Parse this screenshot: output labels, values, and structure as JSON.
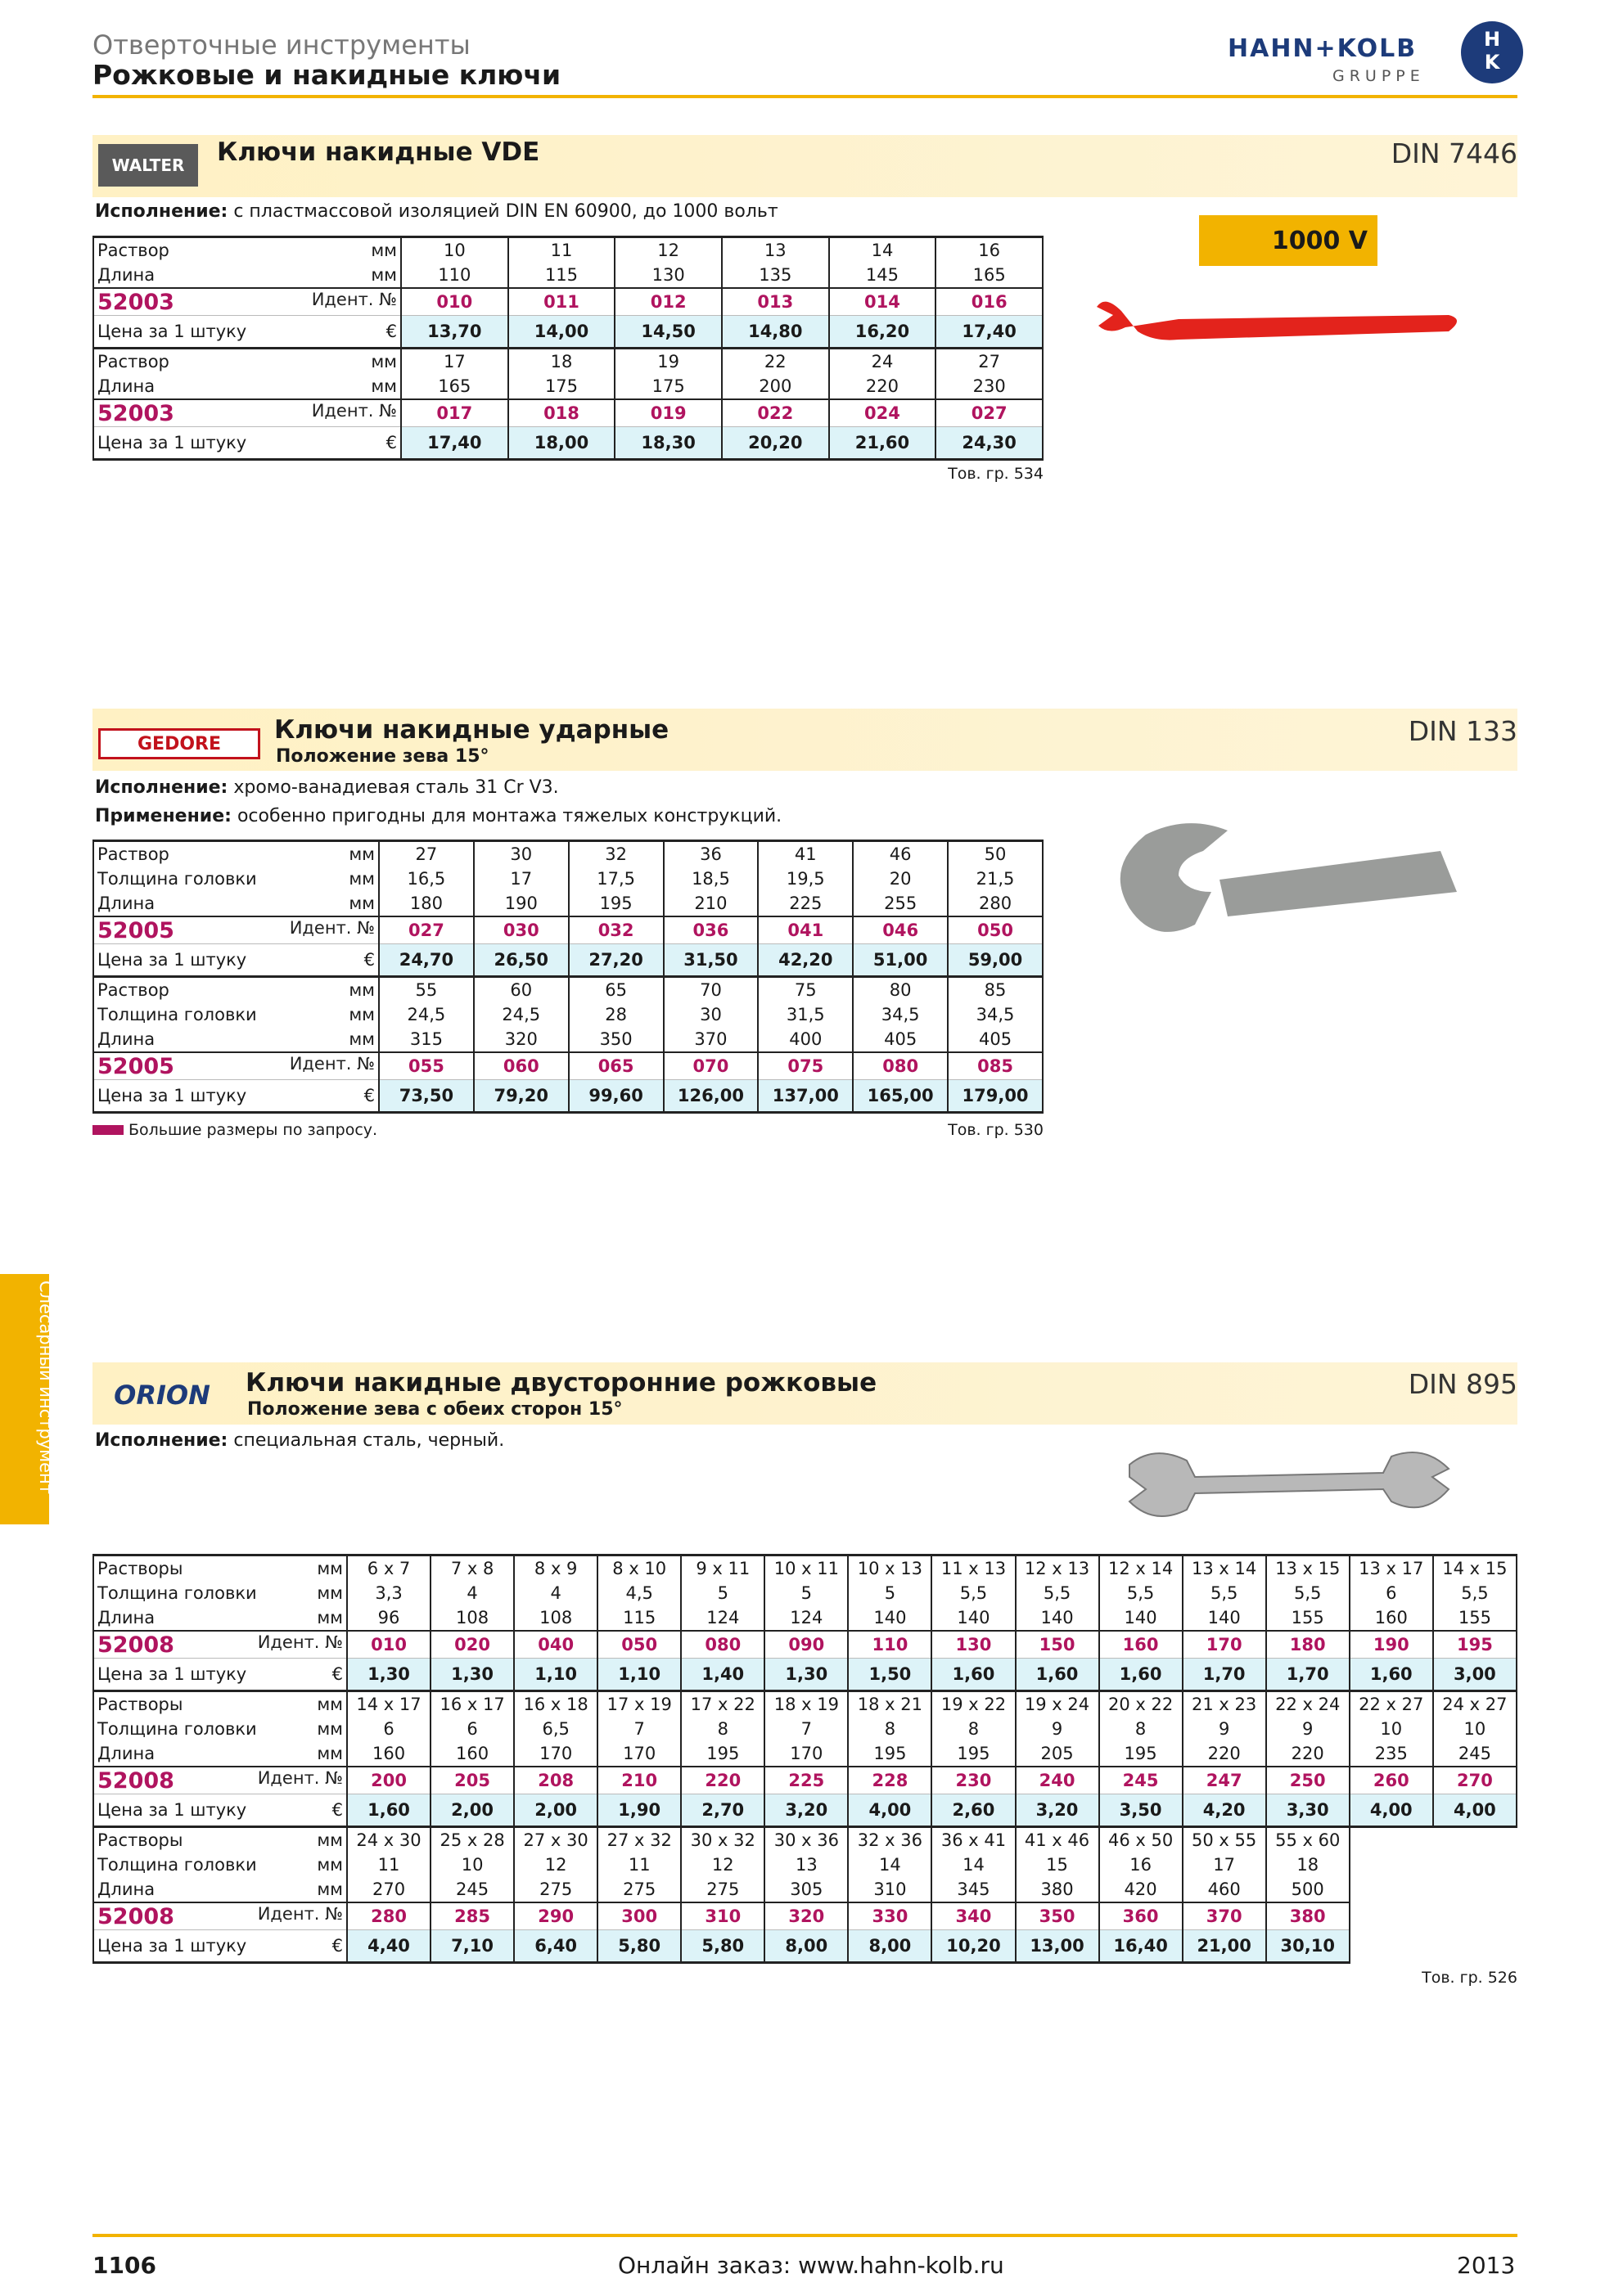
{
  "header": {
    "category": "Отверточные инструменты",
    "title": "Рожковые и накидные ключи",
    "logo": {
      "name": "HAHN+KOLB",
      "sub": "GRUPPE",
      "mark": [
        "H",
        "K"
      ]
    }
  },
  "side_tab": "Слесарный инструмент",
  "sections": [
    {
      "brand": "WALTER",
      "title": "Ключи накидные VDE",
      "din": "DIN 7446",
      "badge": "1000 V",
      "notes": [
        {
          "label": "Исполнение:",
          "text": "с пластмассовой изоляцией DIN EN 60900, до 1000 вольт"
        }
      ],
      "tables": [
        {
          "rows": [
            {
              "label": "Раствор",
              "unit": "мм",
              "cells": [
                "10",
                "11",
                "12",
                "13",
                "14",
                "16"
              ]
            },
            {
              "label": "Длина",
              "unit": "мм",
              "cells": [
                "110",
                "115",
                "130",
                "135",
                "145",
                "165"
              ]
            },
            {
              "label": "52003",
              "unit": "Идент. №",
              "cells": [
                "010",
                "011",
                "012",
                "013",
                "014",
                "016"
              ]
            },
            {
              "label": "Цена за 1 штуку",
              "unit": "€",
              "cells": [
                "13,70",
                "14,00",
                "14,50",
                "14,80",
                "16,20",
                "17,40"
              ]
            }
          ]
        },
        {
          "rows": [
            {
              "label": "Раствор",
              "unit": "мм",
              "cells": [
                "17",
                "18",
                "19",
                "22",
                "24",
                "27"
              ]
            },
            {
              "label": "Длина",
              "unit": "мм",
              "cells": [
                "165",
                "175",
                "175",
                "200",
                "220",
                "230"
              ]
            },
            {
              "label": "52003",
              "unit": "Идент. №",
              "cells": [
                "017",
                "018",
                "019",
                "022",
                "024",
                "027"
              ]
            },
            {
              "label": "Цена за 1 штуку",
              "unit": "€",
              "cells": [
                "17,40",
                "18,00",
                "18,30",
                "20,20",
                "21,60",
                "24,30"
              ]
            }
          ]
        }
      ],
      "group": "Тов. гр. 534"
    },
    {
      "brand": "GEDORE",
      "title": "Ключи накидные ударные",
      "subtitle": "Положение зева 15°",
      "din": "DIN 133",
      "notes": [
        {
          "label": "Исполнение:",
          "text": "хромо-ванадиевая сталь 31 Cr V3."
        },
        {
          "label": "Применение:",
          "text": "особенно пригодны для монтажа тяжелых конструкций."
        }
      ],
      "tables": [
        {
          "rows": [
            {
              "label": "Раствор",
              "unit": "мм",
              "cells": [
                "27",
                "30",
                "32",
                "36",
                "41",
                "46",
                "50"
              ]
            },
            {
              "label": "Толщина головки",
              "unit": "мм",
              "cells": [
                "16,5",
                "17",
                "17,5",
                "18,5",
                "19,5",
                "20",
                "21,5"
              ]
            },
            {
              "label": "Длина",
              "unit": "мм",
              "cells": [
                "180",
                "190",
                "195",
                "210",
                "225",
                "255",
                "280"
              ]
            },
            {
              "label": "52005",
              "unit": "Идент. №",
              "cells": [
                "027",
                "030",
                "032",
                "036",
                "041",
                "046",
                "050"
              ]
            },
            {
              "label": "Цена за 1 штуку",
              "unit": "€",
              "cells": [
                "24,70",
                "26,50",
                "27,20",
                "31,50",
                "42,20",
                "51,00",
                "59,00"
              ]
            }
          ]
        },
        {
          "rows": [
            {
              "label": "Раствор",
              "unit": "мм",
              "cells": [
                "55",
                "60",
                "65",
                "70",
                "75",
                "80",
                "85"
              ]
            },
            {
              "label": "Толщина головки",
              "unit": "мм",
              "cells": [
                "24,5",
                "24,5",
                "28",
                "30",
                "31,5",
                "34,5",
                "34,5"
              ]
            },
            {
              "label": "Длина",
              "unit": "мм",
              "cells": [
                "315",
                "320",
                "350",
                "370",
                "400",
                "405",
                "405"
              ]
            },
            {
              "label": "52005",
              "unit": "Идент. №",
              "cells": [
                "055",
                "060",
                "065",
                "070",
                "075",
                "080",
                "085"
              ]
            },
            {
              "label": "Цена за 1 штуку",
              "unit": "€",
              "cells": [
                "73,50",
                "79,20",
                "99,60",
                "126,00",
                "137,00",
                "165,00",
                "179,00"
              ]
            }
          ]
        }
      ],
      "footnote": "Большие размеры по запросу.",
      "group": "Тов. гр. 530"
    },
    {
      "brand": "ORION",
      "title": "Ключи накидные двусторонние рожковые",
      "subtitle": "Положение зева с обеих сторон 15°",
      "din": "DIN 895",
      "notes": [
        {
          "label": "Исполнение:",
          "text": "специальная сталь, черный."
        }
      ],
      "tables": [
        {
          "rows": [
            {
              "label": "Растворы",
              "unit": "мм",
              "cells": [
                "6 x 7",
                "7 x 8",
                "8 x 9",
                "8 x 10",
                "9 x 11",
                "10 x 11",
                "10 x 13",
                "11 x 13",
                "12 x 13",
                "12 x 14",
                "13 x 14",
                "13 x 15",
                "13 x 17",
                "14 x 15"
              ]
            },
            {
              "label": "Толщина головки",
              "unit": "мм",
              "cells": [
                "3,3",
                "4",
                "4",
                "4,5",
                "5",
                "5",
                "5",
                "5,5",
                "5,5",
                "5,5",
                "5,5",
                "5,5",
                "6",
                "5,5"
              ]
            },
            {
              "label": "Длина",
              "unit": "мм",
              "cells": [
                "96",
                "108",
                "108",
                "115",
                "124",
                "124",
                "140",
                "140",
                "140",
                "140",
                "140",
                "155",
                "160",
                "155"
              ]
            },
            {
              "label": "52008",
              "unit": "Идент. №",
              "cells": [
                "010",
                "020",
                "040",
                "050",
                "080",
                "090",
                "110",
                "130",
                "150",
                "160",
                "170",
                "180",
                "190",
                "195"
              ]
            },
            {
              "label": "Цена за 1 штуку",
              "unit": "€",
              "cells": [
                "1,30",
                "1,30",
                "1,10",
                "1,10",
                "1,40",
                "1,30",
                "1,50",
                "1,60",
                "1,60",
                "1,60",
                "1,70",
                "1,70",
                "1,60",
                "3,00"
              ]
            }
          ]
        },
        {
          "rows": [
            {
              "label": "Растворы",
              "unit": "мм",
              "cells": [
                "14 x 17",
                "16 x 17",
                "16 x 18",
                "17 x 19",
                "17 x 22",
                "18 x 19",
                "18 x 21",
                "19 x 22",
                "19 x 24",
                "20 x 22",
                "21 x 23",
                "22 x 24",
                "22 x 27",
                "24 x 27"
              ]
            },
            {
              "label": "Толщина головки",
              "unit": "мм",
              "cells": [
                "6",
                "6",
                "6,5",
                "7",
                "8",
                "7",
                "8",
                "8",
                "9",
                "8",
                "9",
                "9",
                "10",
                "10"
              ]
            },
            {
              "label": "Длина",
              "unit": "мм",
              "cells": [
                "160",
                "160",
                "170",
                "170",
                "195",
                "170",
                "195",
                "195",
                "205",
                "195",
                "220",
                "220",
                "235",
                "245"
              ]
            },
            {
              "label": "52008",
              "unit": "Идент. №",
              "cells": [
                "200",
                "205",
                "208",
                "210",
                "220",
                "225",
                "228",
                "230",
                "240",
                "245",
                "247",
                "250",
                "260",
                "270"
              ]
            },
            {
              "label": "Цена за 1 штуку",
              "unit": "€",
              "cells": [
                "1,60",
                "2,00",
                "2,00",
                "1,90",
                "2,70",
                "3,20",
                "4,00",
                "2,60",
                "3,20",
                "3,50",
                "4,20",
                "3,30",
                "4,00",
                "4,00"
              ]
            }
          ]
        },
        {
          "rows": [
            {
              "label": "Растворы",
              "unit": "мм",
              "cells": [
                "24 x 30",
                "25 x 28",
                "27 x 30",
                "27 x 32",
                "30 x 32",
                "30 x 36",
                "32 x 36",
                "36 x 41",
                "41 x 46",
                "46 x 50",
                "50 x 55",
                "55 x 60"
              ]
            },
            {
              "label": "Толщина головки",
              "unit": "мм",
              "cells": [
                "11",
                "10",
                "12",
                "11",
                "12",
                "13",
                "14",
                "14",
                "15",
                "16",
                "17",
                "18"
              ]
            },
            {
              "label": "Длина",
              "unit": "мм",
              "cells": [
                "270",
                "245",
                "275",
                "275",
                "275",
                "305",
                "310",
                "345",
                "380",
                "420",
                "460",
                "500"
              ]
            },
            {
              "label": "52008",
              "unit": "Идент. №",
              "cells": [
                "280",
                "285",
                "290",
                "300",
                "310",
                "320",
                "330",
                "340",
                "350",
                "360",
                "370",
                "380"
              ]
            },
            {
              "label": "Цена за 1 штуку",
              "unit": "€",
              "cells": [
                "4,40",
                "7,10",
                "6,40",
                "5,80",
                "5,80",
                "8,00",
                "8,00",
                "10,20",
                "13,00",
                "16,40",
                "21,00",
                "30,10"
              ]
            }
          ]
        }
      ],
      "group": "Тов. гр. 526"
    }
  ],
  "footer": {
    "page": "1106",
    "url": "Онлайн заказ: www.hahn-kolb.ru",
    "year": "2013"
  }
}
